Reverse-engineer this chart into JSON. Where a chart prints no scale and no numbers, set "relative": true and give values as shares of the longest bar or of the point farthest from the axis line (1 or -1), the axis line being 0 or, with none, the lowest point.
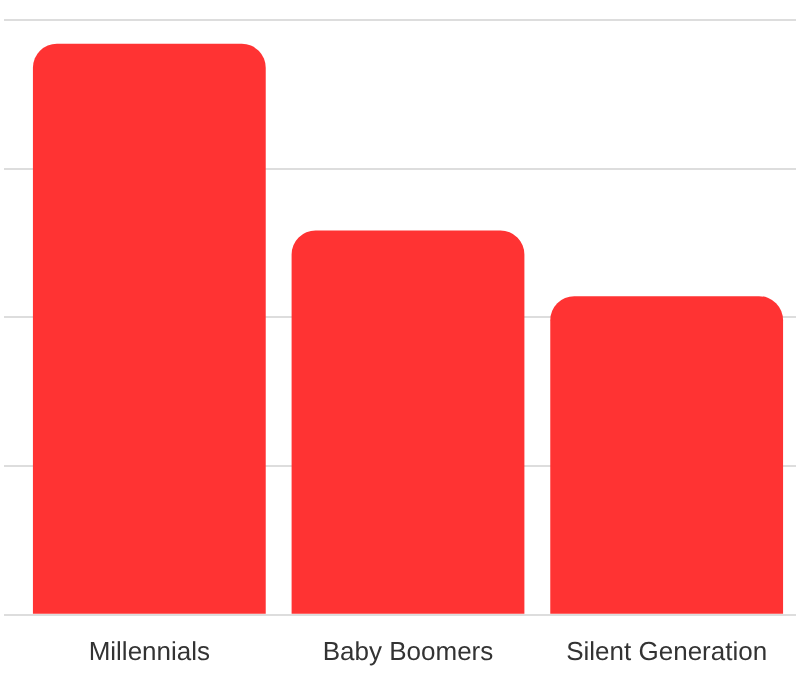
{
  "chart_data": {
    "type": "bar",
    "categories": [
      "Millennials",
      "Baby Boomers",
      "Silent Generation"
    ],
    "values": [
      1,
      0.673,
      0.558
    ],
    "color": "#ff3333",
    "relative": true,
    "grid": "y",
    "legend": false
  }
}
